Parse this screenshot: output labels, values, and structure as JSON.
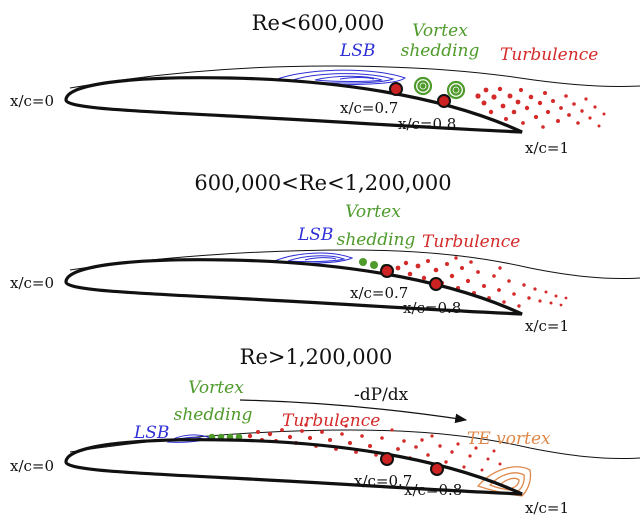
{
  "colors": {
    "lsb": "#2e2fd6",
    "vortex_shedding": "#4e9a2b",
    "turbulence": "#d42a2a",
    "te_vortex": "#e0884a",
    "outline": "#111111"
  },
  "panels": [
    {
      "title": "Re<600,000",
      "labels": {
        "lsb": "LSB",
        "vortex_line1": "Vortex",
        "vortex_line2": "shedding",
        "turbulence": "Turbulence"
      },
      "stations": [
        "x/c=0",
        "x/c=0.7",
        "x/c=0.8",
        "x/c=1"
      ]
    },
    {
      "title": "600,000<Re<1,200,000",
      "labels": {
        "lsb": "LSB",
        "vortex_line1": "Vortex",
        "vortex_line2": "shedding",
        "turbulence": "Turbulence"
      },
      "stations": [
        "x/c=0",
        "x/c=0.7",
        "x/c=0.8",
        "x/c=1"
      ]
    },
    {
      "title": "Re>1,200,000",
      "labels": {
        "lsb": "LSB",
        "vortex_line1": "Vortex",
        "vortex_line2": "shedding",
        "turbulence": "Turbulence",
        "te_vortex": "TE vortex",
        "pressure_gradient": "-dP/dx"
      },
      "stations": [
        "x/c=0",
        "x/c=0.7",
        "x/c=0.8",
        "x/c=1"
      ]
    }
  ]
}
